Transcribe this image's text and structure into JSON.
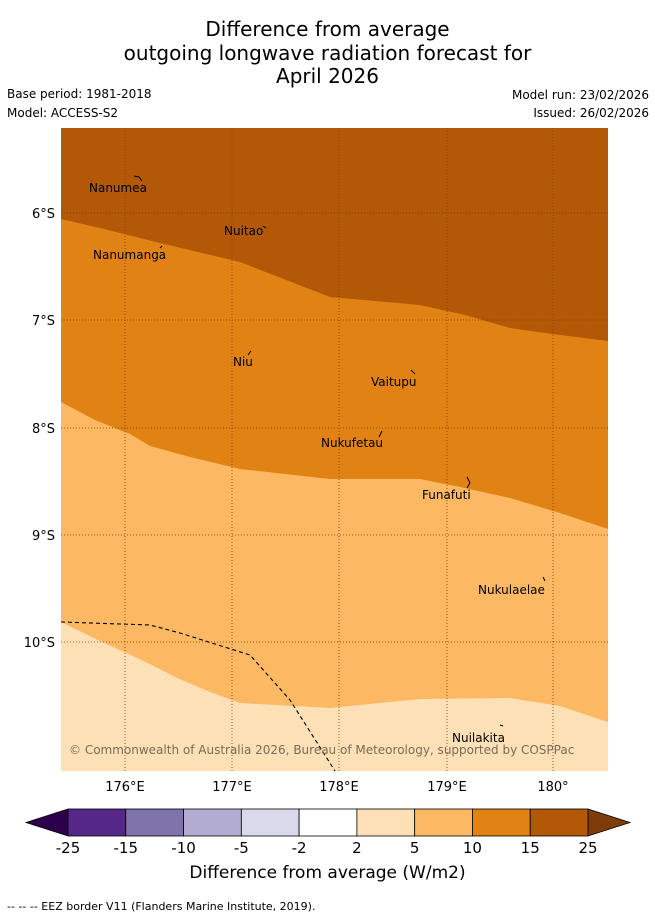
{
  "title": {
    "line1": "Difference from average",
    "line2": "outgoing longwave radiation forecast for",
    "line3": "April 2026"
  },
  "meta": {
    "base_period": "Base period: 1981-2018",
    "model": "Model: ACCESS-S2",
    "model_run": "Model run: 23/02/2026",
    "issued": "Issued: 26/02/2026"
  },
  "map": {
    "lat_labels": [
      "6°S",
      "7°S",
      "8°S",
      "9°S",
      "10°S"
    ],
    "lon_labels": [
      "176°E",
      "177°E",
      "178°E",
      "179°E",
      "180°"
    ],
    "places": [
      "Nanumea",
      "Nuitao",
      "Nanumanga",
      "Niu",
      "Vaitupu",
      "Nukufetau",
      "Funafuti",
      "Nukulaelae",
      "Nuilakita"
    ],
    "copyright": "© Commonwealth of Australia 2026, Bureau of Meteorology, supported by COSPPac",
    "colors": {
      "c15_25": "#b35806",
      "c10_15": "#e08214",
      "c5_10": "#fdb863",
      "c2_5": "#fee0b6"
    }
  },
  "colorbar": {
    "ticks": [
      "-25",
      "-15",
      "-10",
      "-5",
      "-2",
      "2",
      "5",
      "10",
      "15",
      "25"
    ],
    "colors": [
      "#542788",
      "#8073ac",
      "#b2abd2",
      "#d8daeb",
      "#ffffff",
      "#fee0b6",
      "#fdb863",
      "#e08214",
      "#b35806"
    ],
    "under_color": "#2d004b",
    "over_color": "#7f3b08",
    "label": "Difference from average (W/m2)"
  },
  "footnote": "--  --  -- EEZ border V11 (Flanders Marine Institute, 2019)."
}
